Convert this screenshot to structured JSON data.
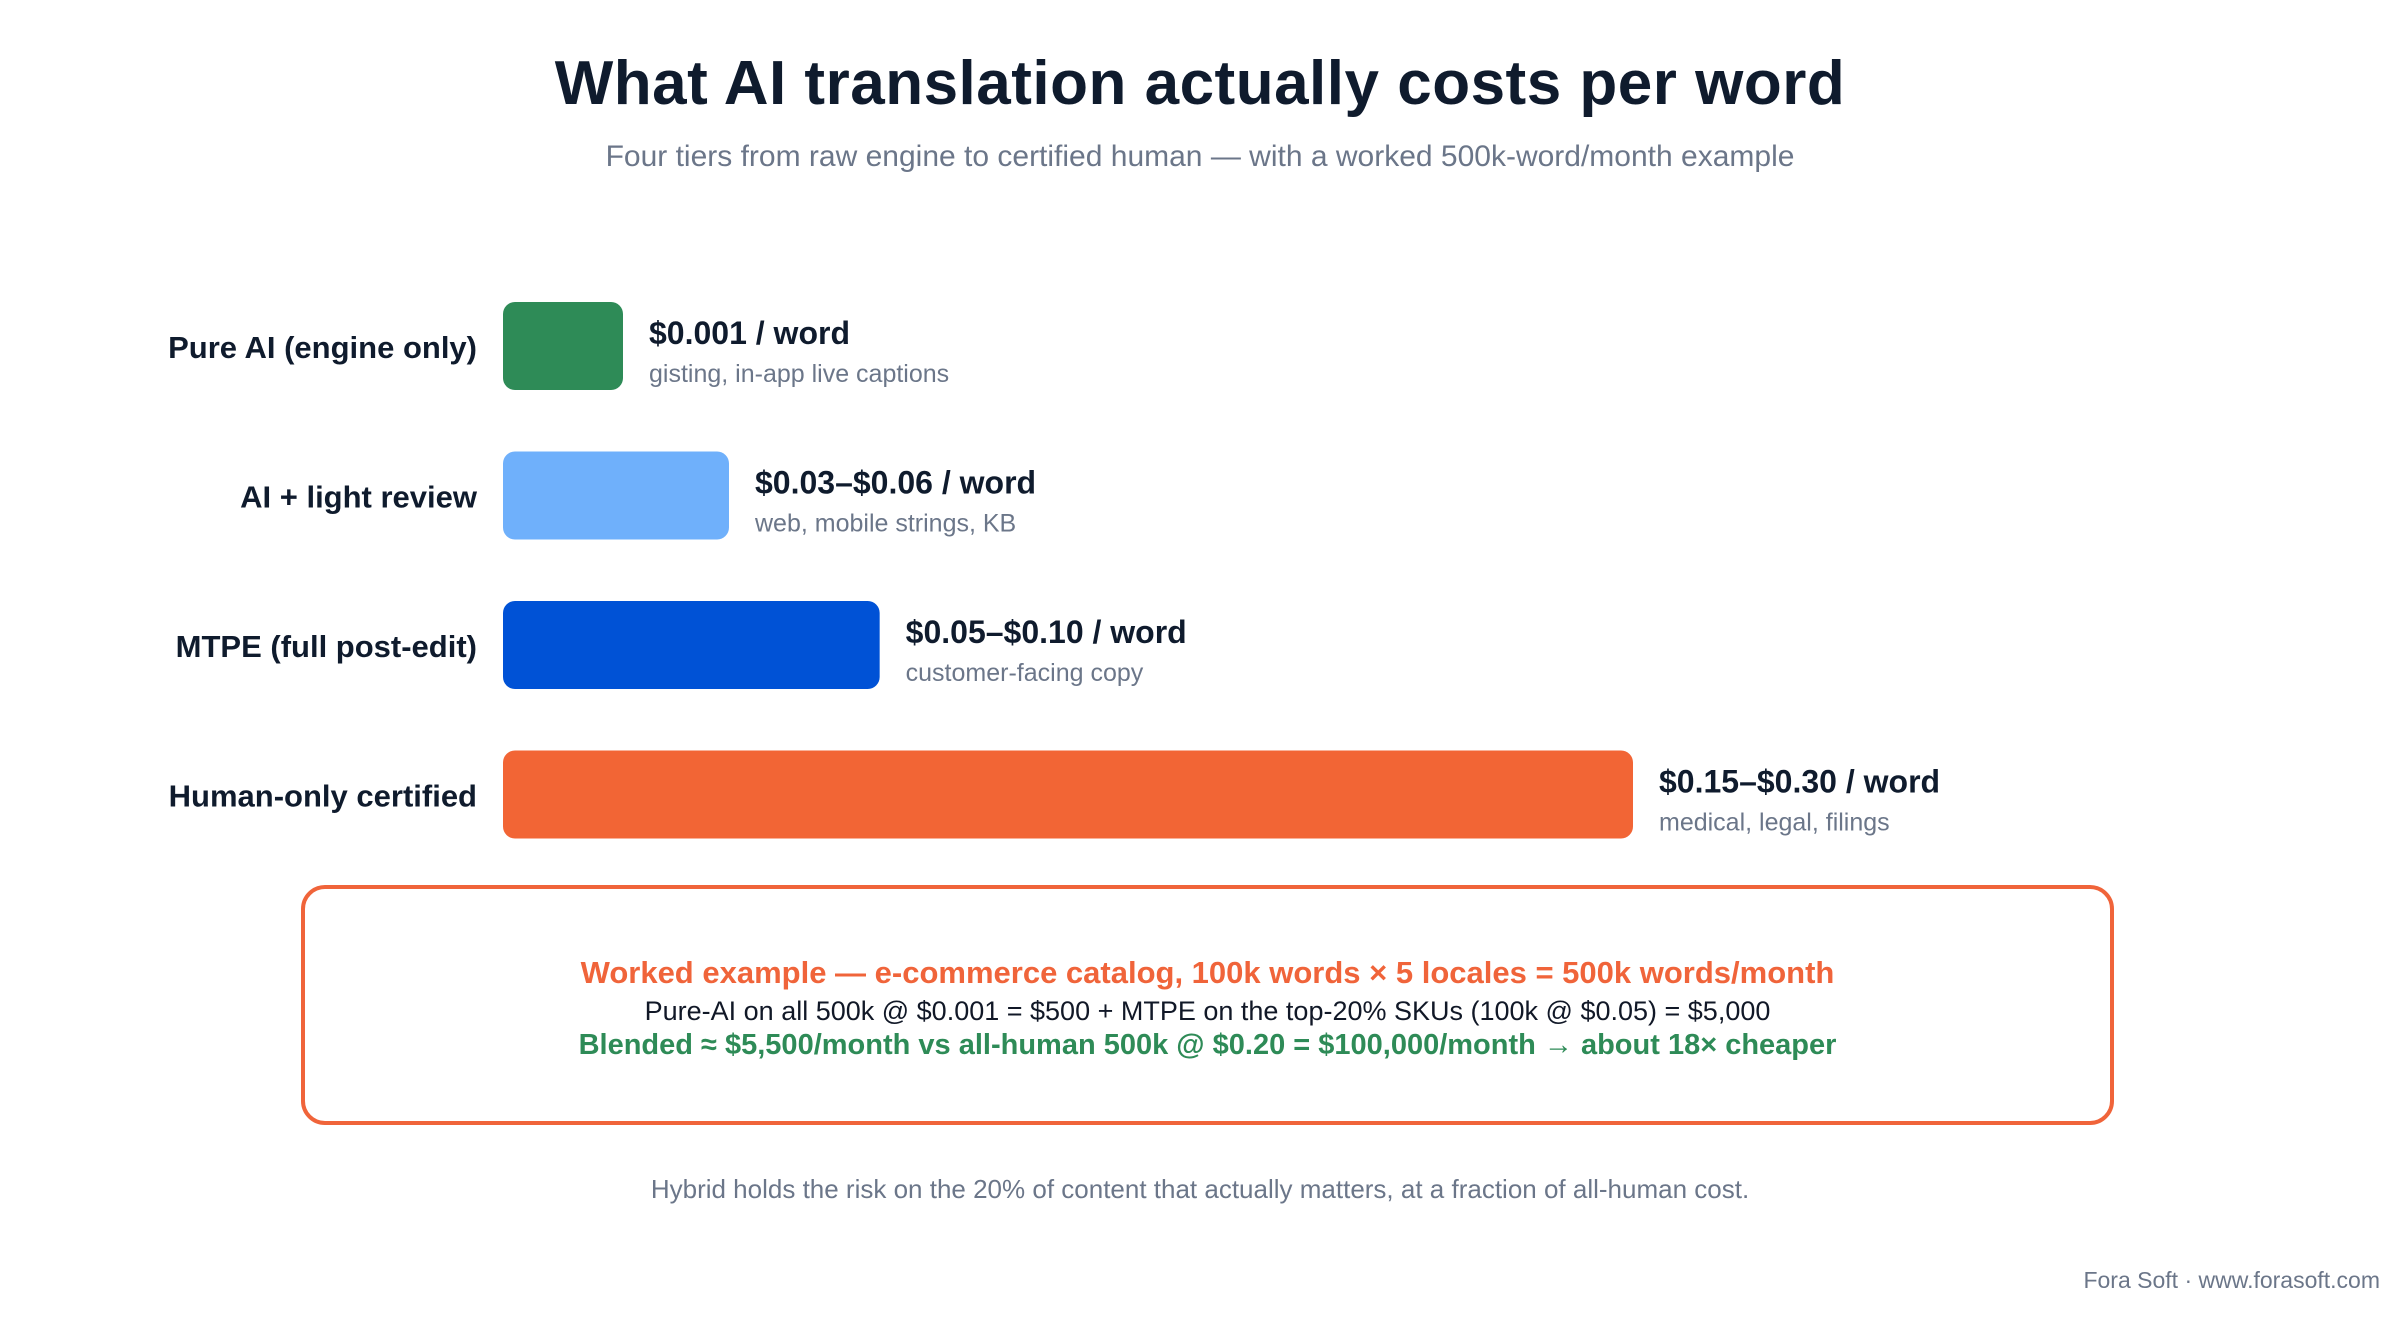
{
  "chart_data": {
    "type": "bar",
    "orientation": "horizontal",
    "title": "What AI translation actually costs per word",
    "subtitle": "Four tiers from raw engine to certified human — with a worked 500k-word/month example",
    "categories": [
      "Pure AI (engine only)",
      "AI + light review",
      "MTPE (full post-edit)",
      "Human-only certified"
    ],
    "values": [
      0.001,
      0.045,
      0.075,
      0.225
    ],
    "value_labels": [
      "$0.001 / word",
      "$0.03–$0.06 / word",
      "$0.05–$0.10 / word",
      "$0.15–$0.30 / word"
    ],
    "sub_labels": [
      "gisting, in-app live captions",
      "web, mobile strings, KB",
      "customer-facing copy",
      "medical, legal, filings"
    ],
    "colors": [
      "#2e8b57",
      "#6fb0fb",
      "#0052d6",
      "#f26535"
    ],
    "grid": false,
    "legend": "none"
  },
  "callout": {
    "line1": "Worked example — e-commerce catalog, 100k words × 5 locales = 500k words/month",
    "line2": "Pure-AI on all 500k @ $0.001 = $500 + MTPE on the top-20% SKUs (100k @ $0.05) = $5,000",
    "line3": "Blended ≈ $5,500/month vs all-human 500k @ $0.20 = $100,000/month → about 18× cheaper",
    "accent_color": "#f0643a",
    "highlight_color": "#2e8b57"
  },
  "footnote": "Hybrid holds the risk on the 20% of content that actually matters, at a fraction of all-human cost.",
  "credit": "Fora Soft · www.forasoft.com"
}
